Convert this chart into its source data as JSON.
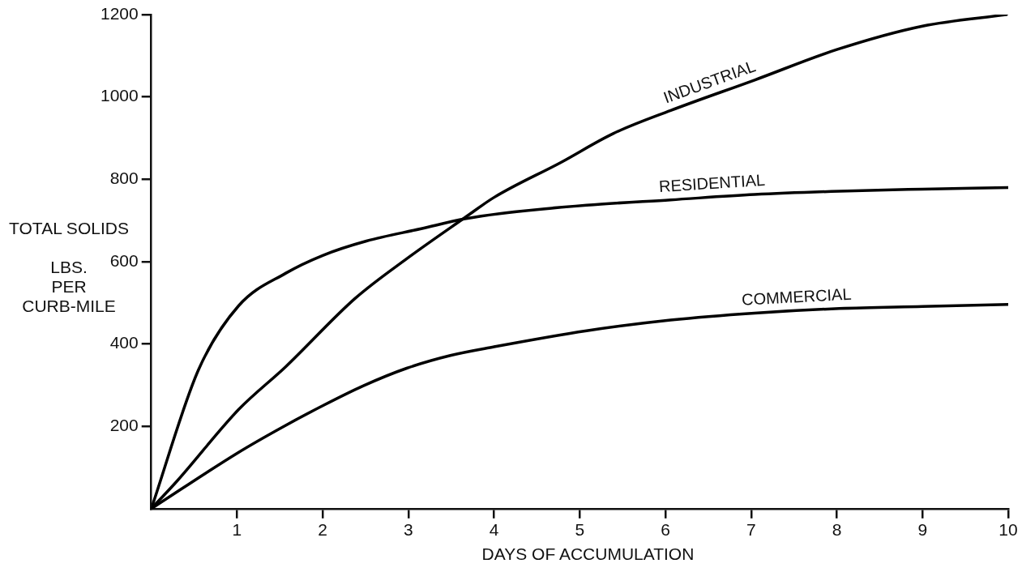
{
  "chart_data": {
    "type": "line",
    "xlabel": "DAYS OF ACCUMULATION",
    "ylabel": "TOTAL SOLIDS\n\nLBS.\nPER\nCURB-MILE",
    "xlim": [
      0,
      10
    ],
    "ylim": [
      0,
      1200
    ],
    "xticks": [
      1,
      2,
      3,
      4,
      5,
      6,
      7,
      8,
      9,
      10
    ],
    "yticks": [
      200,
      400,
      600,
      800,
      1000,
      1200
    ],
    "grid": false,
    "legend": false,
    "marker": "none",
    "line_style": "solid",
    "series": [
      {
        "name": "INDUSTRIAL",
        "color": "#000000",
        "x": [
          0,
          0.3,
          1.02,
          1.57,
          2.38,
          2.98,
          3.66,
          4.0,
          4.78,
          5.39,
          6.06,
          7.04,
          8.0,
          9.0,
          9.98
        ],
        "values": [
          0,
          67,
          241,
          345,
          511,
          607,
          707,
          756,
          841,
          911,
          967,
          1041,
          1115,
          1172,
          1200
        ]
      },
      {
        "name": "RESIDENTIAL",
        "color": "#000000",
        "x": [
          0,
          0.55,
          1.02,
          1.57,
          2.0,
          2.51,
          3.15,
          3.66,
          4.08,
          5.08,
          6.06,
          7.04,
          8.03,
          9.0,
          10.0
        ],
        "values": [
          0,
          337,
          493,
          572,
          615,
          650,
          680,
          704,
          717,
          737,
          750,
          763,
          771,
          776,
          780
        ]
      },
      {
        "name": "COMMERCIAL",
        "color": "#000000",
        "x": [
          0,
          1.02,
          1.53,
          2.0,
          2.47,
          2.98,
          3.49,
          4.0,
          5.08,
          6.06,
          7.04,
          8.03,
          9.0,
          10.0
        ],
        "values": [
          0,
          137,
          198,
          250,
          298,
          341,
          372,
          393,
          432,
          458,
          475,
          486,
          491,
          496
        ]
      }
    ]
  }
}
